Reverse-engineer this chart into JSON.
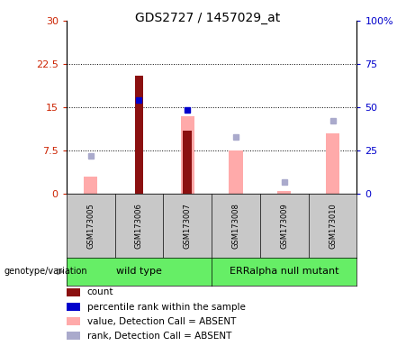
{
  "title": "GDS2727 / 1457029_at",
  "samples": [
    "GSM173005",
    "GSM173006",
    "GSM173007",
    "GSM173008",
    "GSM173009",
    "GSM173010"
  ],
  "count_values": [
    0,
    20.5,
    11.0,
    0,
    0,
    0
  ],
  "percentile_values": [
    null,
    54.0,
    48.5,
    null,
    null,
    null
  ],
  "absent_value_values": [
    3.0,
    0,
    13.5,
    7.5,
    0.5,
    10.5
  ],
  "absent_rank_values": [
    22.0,
    0,
    0,
    33.0,
    7.0,
    42.0
  ],
  "ylim_left": [
    0,
    30
  ],
  "ylim_right": [
    0,
    100
  ],
  "yticks_left": [
    0,
    7.5,
    15,
    22.5,
    30
  ],
  "yticks_right": [
    0,
    25,
    50,
    75,
    100
  ],
  "ytick_labels_left": [
    "0",
    "7.5",
    "15",
    "22.5",
    "30"
  ],
  "ytick_labels_right": [
    "0",
    "25",
    "50",
    "75",
    "100%"
  ],
  "hlines": [
    7.5,
    15,
    22.5
  ],
  "count_color": "#8B1010",
  "percentile_color": "#0000CC",
  "absent_value_color": "#FFAAAA",
  "absent_rank_color": "#AAAACC",
  "left_axis_color": "#CC2200",
  "right_axis_color": "#0000CC",
  "legend_labels": [
    "count",
    "percentile rank within the sample",
    "value, Detection Call = ABSENT",
    "rank, Detection Call = ABSENT"
  ],
  "legend_colors": [
    "#8B1010",
    "#0000CC",
    "#FFAAAA",
    "#AAAACC"
  ],
  "sample_bg": "#C8C8C8",
  "group_bg": "#66EE66",
  "plot_bg": "#ffffff"
}
